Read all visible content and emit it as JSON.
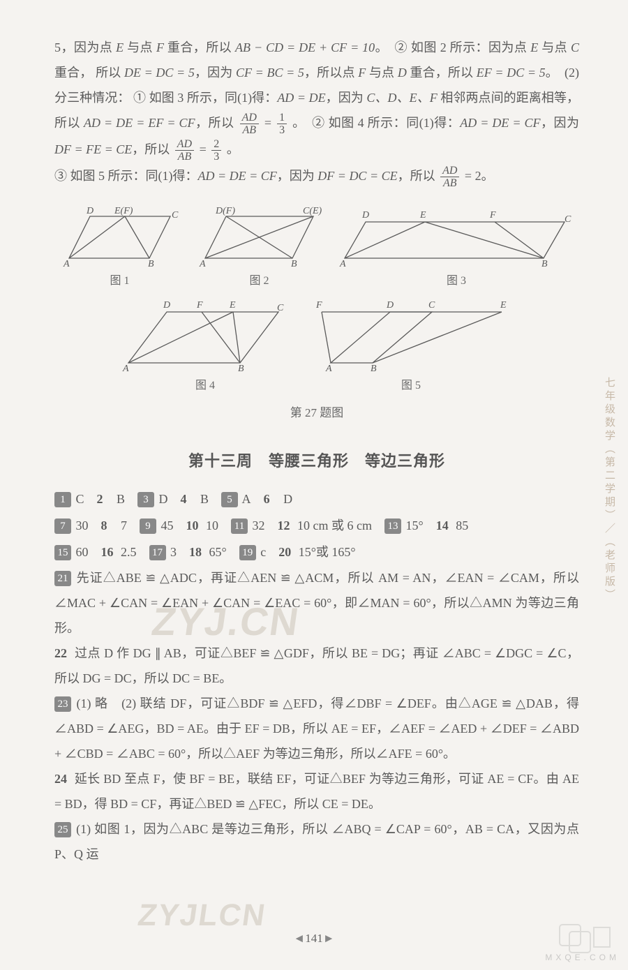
{
  "intro": {
    "line1_a": "5，因为点 ",
    "line1_b": " 与点 ",
    "line1_c": " 重合，所以 ",
    "line1_eq1": "AB − CD = DE + CF = 10",
    "line1_d": "。　② 如图 2 所示：因为点 ",
    "line1_e": " 与点 ",
    "line1_f": " 重合，",
    "line2_a": "所以 ",
    "line2_eq1": "DE = DC = 5",
    "line2_b": "，因为 ",
    "line2_eq2": "CF = BC = 5",
    "line2_c": "，所以点 ",
    "line2_d": " 与点 ",
    "line2_e": " 重合，所以 ",
    "line2_eq3": "EF = DC = 5",
    "line2_f": "。　(2) 分三种情况：",
    "line3_a": "① 如图 3 所示，同(1)得：",
    "line3_eq1": "AD = DE",
    "line3_b": "，因为 ",
    "line3_c": "C、D、E、F",
    "line3_d": " 相邻两点间的距离相等，所以 ",
    "line3_eq2": "AD = DE = EF =",
    "line4_a": "CF",
    "line4_b": "，所以",
    "line4_frac1_num": "AD",
    "line4_frac1_den": "AB",
    "line4_c": " = ",
    "line4_frac2_num": "1",
    "line4_frac2_den": "3",
    "line4_d": "。　② 如图 4 所示：同(1)得：",
    "line4_eq1": "AD = DE = CF",
    "line4_e": "，因为 ",
    "line4_eq2": "DF = FE = CE",
    "line4_f": "，所以",
    "line4_frac3_num": "AD",
    "line4_frac3_den": "AB",
    "line4_g": " = ",
    "line4_frac4_num": "2",
    "line4_frac4_den": "3",
    "line4_h": "。",
    "line5_a": "③ 如图 5 所示：同(1)得：",
    "line5_eq1": "AD = DE = CF",
    "line5_b": "，因为 ",
    "line5_eq2": "DF = DC = CE",
    "line5_c": "，所以",
    "line5_frac1_num": "AD",
    "line5_frac1_den": "AB",
    "line5_d": " = 2。",
    "E": "E",
    "F": "F",
    "C": "C",
    "D": "D"
  },
  "fig": {
    "label1": "图 1",
    "label2": "图 2",
    "label3": "图 3",
    "label4": "图 4",
    "label5": "图 5",
    "caption": "第 27 题图",
    "stroke": "#5a5a5a",
    "label_fontsize": 14
  },
  "section_title": "第十三周　等腰三角形　等边三角形",
  "answers": {
    "row1": [
      {
        "n": "1",
        "boxed": true,
        "a": "C"
      },
      {
        "n": "2",
        "boxed": false,
        "a": "B"
      },
      {
        "n": "3",
        "boxed": true,
        "a": "D"
      },
      {
        "n": "4",
        "boxed": false,
        "a": "B"
      },
      {
        "n": "5",
        "boxed": true,
        "a": "A"
      },
      {
        "n": "6",
        "boxed": false,
        "a": "D"
      }
    ],
    "row2": [
      {
        "n": "7",
        "boxed": true,
        "a": "30"
      },
      {
        "n": "8",
        "boxed": false,
        "a": "7"
      },
      {
        "n": "9",
        "boxed": true,
        "a": "45"
      },
      {
        "n": "10",
        "boxed": false,
        "a": "10"
      },
      {
        "n": "11",
        "boxed": true,
        "a": "32"
      },
      {
        "n": "12",
        "boxed": false,
        "a": "10 cm 或 6 cm"
      },
      {
        "n": "13",
        "boxed": true,
        "a": "15°"
      },
      {
        "n": "14",
        "boxed": false,
        "a": "85"
      }
    ],
    "row3": [
      {
        "n": "15",
        "boxed": true,
        "a": "60"
      },
      {
        "n": "16",
        "boxed": false,
        "a": "2.5"
      },
      {
        "n": "17",
        "boxed": true,
        "a": "3"
      },
      {
        "n": "18",
        "boxed": false,
        "a": "65°"
      },
      {
        "n": "19",
        "boxed": true,
        "a": "c"
      },
      {
        "n": "20",
        "boxed": false,
        "a": "15°或 165°"
      }
    ]
  },
  "q21": {
    "num": "21",
    "text": "先证△ABE ≌ △ADC，再证△AEN ≌ △ACM，所以 AM = AN，∠EAN = ∠CAM，所以 ∠MAC + ∠CAN = ∠EAN + ∠CAN = ∠EAC = 60°，即∠MAN = 60°，所以△AMN 为等边三角形。"
  },
  "q22": {
    "num": "22",
    "text": "过点 D 作 DG ∥ AB，可证△BEF ≌ △GDF，所以 BE = DG；再证 ∠ABC = ∠DGC = ∠C，所以 DG = DC，所以 DC = BE。"
  },
  "q23": {
    "num": "23",
    "text": "(1) 略　(2) 联结 DF，可证△BDF ≌ △EFD，得∠DBF = ∠DEF。由△AGE ≌ △DAB，得 ∠ABD = ∠AEG，BD = AE。由于 EF = DB，所以 AE = EF，∠AEF = ∠AED + ∠DEF = ∠ABD + ∠CBD = ∠ABC = 60°，所以△AEF 为等边三角形，所以∠AFE = 60°。"
  },
  "q24": {
    "num": "24",
    "text": "延长 BD 至点 F，使 BF = BE，联结 EF，可证△BEF 为等边三角形，可证 AE = CF。由 AE = BD，得 BD = CF，再证△BED ≌ △FEC，所以 CE = DE。"
  },
  "q25": {
    "num": "25",
    "text": "(1) 如图 1，因为△ABC 是等边三角形，所以 ∠ABQ = ∠CAP = 60°，AB = CA，又因为点 P、Q 运"
  },
  "side_label": "七年级数学（第二学期）／（老师版）",
  "page_number": "141",
  "watermark1": "ZYJ.CN",
  "watermark2": "ZYJLCN",
  "corner": "MXQE.COM"
}
